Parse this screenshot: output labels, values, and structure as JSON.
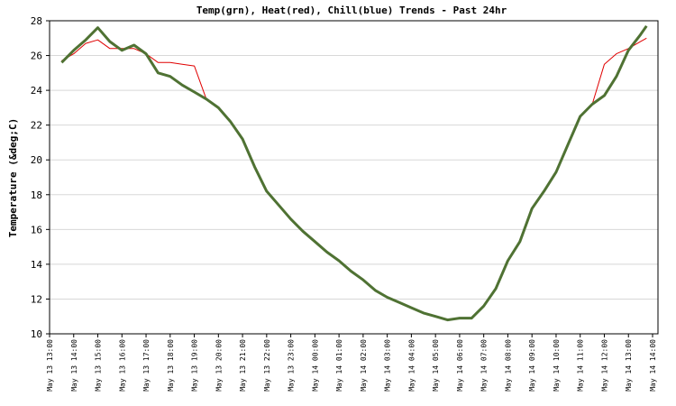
{
  "chart_data": {
    "type": "line",
    "title": "Temp(grn), Heat(red), Chill(blue) Trends - Past 24hr",
    "y_label": "Temperature (&deg;C)",
    "x": [
      "May 13 13:30",
      "May 13 14:00",
      "May 13 14:30",
      "May 13 15:00",
      "May 13 15:30",
      "May 13 16:00",
      "May 13 16:30",
      "May 13 17:00",
      "May 13 17:30",
      "May 13 18:00",
      "May 13 18:30",
      "May 13 19:00",
      "May 13 19:30",
      "May 13 20:00",
      "May 13 20:30",
      "May 13 21:00",
      "May 13 21:30",
      "May 13 22:00",
      "May 13 22:30",
      "May 13 23:00",
      "May 13 23:30",
      "May 14 00:00",
      "May 14 00:30",
      "May 14 01:00",
      "May 14 01:30",
      "May 14 02:00",
      "May 14 02:30",
      "May 14 03:00",
      "May 14 03:30",
      "May 14 04:00",
      "May 14 04:30",
      "May 14 05:00",
      "May 14 05:30",
      "May 14 06:00",
      "May 14 06:30",
      "May 14 07:00",
      "May 14 07:30",
      "May 14 08:00",
      "May 14 08:30",
      "May 14 09:00",
      "May 14 09:30",
      "May 14 10:00",
      "May 14 10:30",
      "May 14 11:00",
      "May 14 11:30",
      "May 14 12:00",
      "May 14 12:30",
      "May 14 13:00",
      "May 14 13:30",
      "May 14 13:45"
    ],
    "series": [
      {
        "color": "#e00000",
        "values": [
          25.7,
          26.1,
          26.7,
          26.9,
          26.4,
          26.4,
          26.4,
          26.1,
          25.6,
          25.6,
          25.5,
          25.4,
          23.5,
          23.0,
          22.2,
          21.2,
          19.6,
          18.2,
          17.4,
          16.6,
          15.9,
          15.3,
          14.7,
          14.2,
          13.6,
          13.1,
          12.5,
          12.1,
          11.8,
          11.5,
          11.2,
          11.0,
          10.8,
          10.9,
          10.9,
          11.6,
          12.6,
          14.2,
          15.3,
          17.2,
          18.2,
          19.3,
          20.9,
          22.5,
          23.2,
          25.5,
          26.1,
          26.4,
          26.8,
          27.0
        ]
      },
      {
        "color": "#4f7233",
        "values": [
          25.6,
          26.3,
          26.9,
          27.6,
          26.8,
          26.3,
          26.6,
          26.1,
          25.0,
          24.8,
          24.3,
          23.9,
          23.5,
          23.0,
          22.2,
          21.2,
          19.6,
          18.2,
          17.4,
          16.6,
          15.9,
          15.3,
          14.7,
          14.2,
          13.6,
          13.1,
          12.5,
          12.1,
          11.8,
          11.5,
          11.2,
          11.0,
          10.8,
          10.9,
          10.9,
          11.6,
          12.6,
          14.2,
          15.3,
          17.2,
          18.2,
          19.3,
          20.9,
          22.5,
          23.2,
          23.7,
          24.8,
          26.3,
          27.2,
          27.7
        ]
      }
    ],
    "xlim": [
      "May 13 13:00",
      "May 14 14:00"
    ],
    "xticks": [
      "May 13 13:00",
      "May 13 14:00",
      "May 13 15:00",
      "May 13 16:00",
      "May 13 17:00",
      "May 13 18:00",
      "May 13 19:00",
      "May 13 20:00",
      "May 13 21:00",
      "May 13 22:00",
      "May 13 23:00",
      "May 14 00:00",
      "May 14 01:00",
      "May 14 02:00",
      "May 14 03:00",
      "May 14 04:00",
      "May 14 05:00",
      "May 14 06:00",
      "May 14 07:00",
      "May 14 08:00",
      "May 14 09:00",
      "May 14 10:00",
      "May 14 11:00",
      "May 14 12:00",
      "May 14 13:00",
      "May 14 14:00"
    ],
    "ylim": [
      10,
      28
    ],
    "yticks": [
      10,
      12,
      14,
      16,
      18,
      20,
      22,
      24,
      26,
      28
    ],
    "grid": true
  }
}
